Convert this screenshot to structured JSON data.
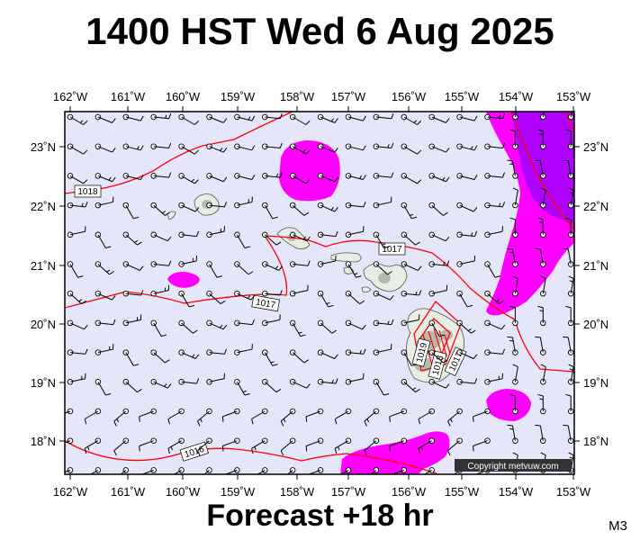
{
  "title": "1400 HST Wed 6 Aug 2025",
  "footer": "Forecast +18 hr",
  "model": "M3",
  "copyright": "Copyright metvuw.com",
  "lon_labels": [
    "162˚W",
    "161˚W",
    "160˚W",
    "159˚W",
    "158˚W",
    "157˚W",
    "156˚W",
    "155˚W",
    "154˚W",
    "153˚W"
  ],
  "lat_labels": [
    "23˚N",
    "22˚N",
    "21˚N",
    "20˚N",
    "19˚N",
    "18˚N"
  ],
  "isobar_labels": [
    "1018",
    "1017",
    "1017",
    "1016",
    "1019",
    "1018",
    "1017"
  ],
  "colors": {
    "ocean": "#e6e6fa",
    "precip_light": "#ff00ff",
    "precip_heavy": "#b000ff",
    "isobar": "#ff0000",
    "land": "#e8ede6"
  }
}
